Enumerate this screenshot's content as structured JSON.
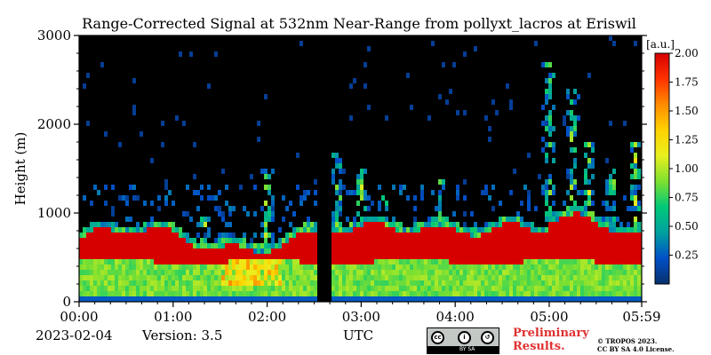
{
  "chart_data": {
    "type": "heatmap",
    "title": "Range-Corrected Signal at 532nm Near-Range from pollyxt_lacros at Eriswil",
    "xlabel": "UTC",
    "ylabel": "Height (m)",
    "x_ticks": [
      "00:00",
      "01:00",
      "02:00",
      "03:00",
      "04:00",
      "05:00",
      "05:59"
    ],
    "y_ticks": [
      "0",
      "1000",
      "2000",
      "3000"
    ],
    "ylim": [
      0,
      3000
    ],
    "colorbar": {
      "unit": "[a.u.]",
      "min": 0.0,
      "max": 2.0,
      "ticks": [
        "0.25",
        "0.50",
        "0.75",
        "1.00",
        "1.25",
        "1.50",
        "1.75",
        "2.00"
      ],
      "colormap": [
        "#08306b",
        "#0050c8",
        "#00a0a0",
        "#00c878",
        "#7de030",
        "#e8f01e",
        "#ffd200",
        "#ff8c00",
        "#ff3200",
        "#d70000"
      ]
    },
    "background_color": "#000000",
    "data_gap": {
      "start": "02:31",
      "end": "02:41"
    },
    "layers": [
      {
        "name": "aerosol_layer",
        "top_m": 450,
        "value": 0.8
      },
      {
        "name": "layer_top_saturated",
        "top_m": 700,
        "value": 2.0
      }
    ]
  },
  "footer": {
    "date": "2023-02-04",
    "version": "Version: 3.5",
    "utc_label": "UTC",
    "preliminary": "Preliminary\nResults.",
    "license_line1": "© TROPOS 2023.",
    "license_line2": "CC BY SA 4.0 License.",
    "badge_text": "BY    SA"
  },
  "colors": {
    "preliminary": "#e03030"
  }
}
